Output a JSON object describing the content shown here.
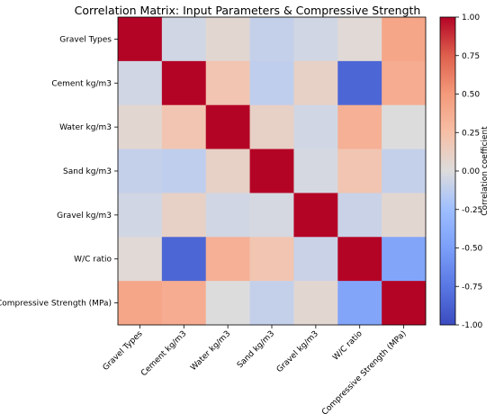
{
  "chart_data": {
    "type": "heatmap",
    "title": "Correlation Matrix: Input Parameters & Compressive Strength",
    "row_labels": [
      "Gravel Types",
      "Cement kg/m3",
      "Water kg/m3",
      "Sand kg/m3",
      "Gravel kg/m3",
      "W/C ratio",
      "Compressive Strength (MPa)"
    ],
    "col_labels": [
      "Gravel Types",
      "Cement kg/m3",
      "Water kg/m3",
      "Sand kg/m3",
      "Gravel kg/m3",
      "W/C ratio",
      "Compressive Strength (MPa)"
    ],
    "values": [
      [
        1.0,
        -0.05,
        0.05,
        -0.1,
        -0.05,
        0.03,
        0.42
      ],
      [
        -0.05,
        1.0,
        0.2,
        -0.12,
        0.1,
        -0.85,
        0.38
      ],
      [
        0.05,
        0.2,
        1.0,
        0.1,
        -0.05,
        0.35,
        0.0
      ],
      [
        -0.1,
        -0.12,
        0.1,
        1.0,
        -0.03,
        0.2,
        -0.1
      ],
      [
        -0.05,
        0.1,
        -0.05,
        -0.03,
        1.0,
        -0.08,
        0.05
      ],
      [
        0.03,
        -0.85,
        0.35,
        0.2,
        -0.08,
        1.0,
        -0.45
      ],
      [
        0.42,
        0.38,
        0.0,
        -0.1,
        0.05,
        -0.45,
        1.0
      ]
    ],
    "colormap": "coolwarm",
    "vmin": -1.0,
    "vmax": 1.0,
    "colorbar": {
      "label": "Correlation coefficient",
      "ticks": [
        "1.00",
        "0.75",
        "0.50",
        "0.25",
        "0.00",
        "-0.25",
        "-0.50",
        "-0.75",
        "-1.00"
      ]
    }
  }
}
